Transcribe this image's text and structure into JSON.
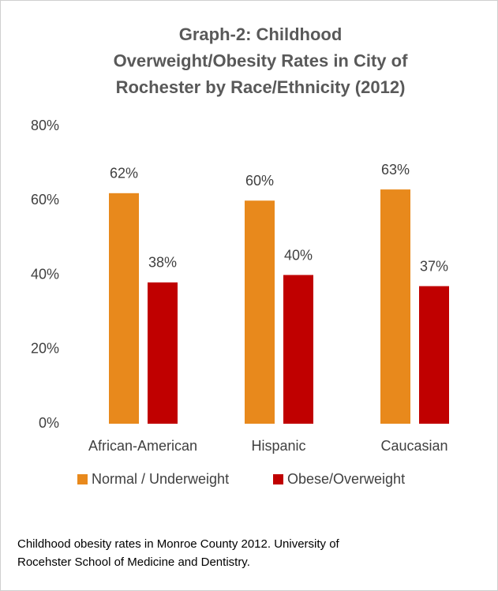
{
  "chart_data": {
    "type": "bar",
    "title": [
      "Graph-2: Childhood",
      "Overweight/Obesity Rates in City of",
      "Rochester by Race/Ethnicity (2012)"
    ],
    "categories": [
      "African-American",
      "Hispanic",
      "Caucasian"
    ],
    "series": [
      {
        "name": "Normal / Underweight",
        "color": "#e8891c",
        "values": [
          62,
          60,
          63
        ],
        "value_labels": [
          "62%",
          "60%",
          "63%"
        ]
      },
      {
        "name": "Obese/Overweight",
        "color": "#c00000",
        "values": [
          38,
          40,
          37
        ],
        "value_labels": [
          "38%",
          "40%",
          "37%"
        ]
      }
    ],
    "ylim": [
      0,
      80
    ],
    "yticks": [
      {
        "value": 0,
        "label": "0%"
      },
      {
        "value": 20,
        "label": "20%"
      },
      {
        "value": 40,
        "label": "40%"
      },
      {
        "value": 60,
        "label": "60%"
      },
      {
        "value": 80,
        "label": "80%"
      }
    ],
    "grid": false,
    "legend": "bottom",
    "caption": [
      "Childhood obesity rates in Monroe County 2012. University of",
      "Rocehster School of Medicine and Dentistry."
    ]
  }
}
